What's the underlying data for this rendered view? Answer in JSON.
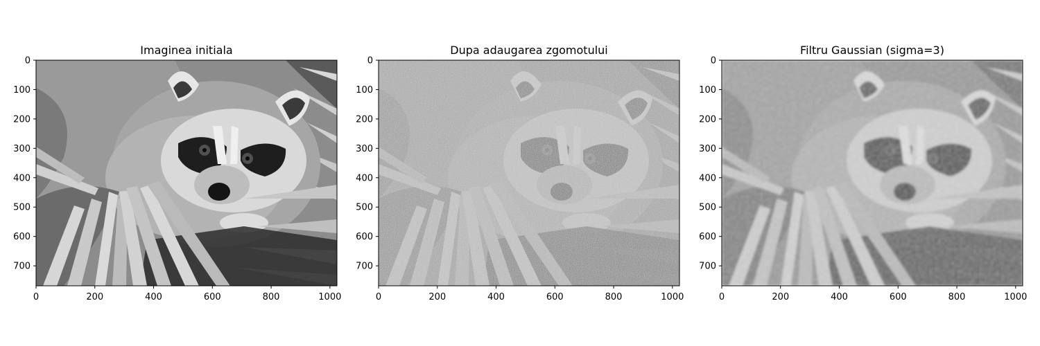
{
  "figure": {
    "description_hidden": "",
    "panels": [
      {
        "id": "original",
        "title": "Imaginea initiala",
        "xticks": [
          "0",
          "200",
          "400",
          "600",
          "800",
          "1000"
        ],
        "yticks": [
          "0",
          "100",
          "200",
          "300",
          "400",
          "500",
          "600",
          "700"
        ],
        "xlim": [
          0,
          1024
        ],
        "ylim": [
          768,
          0
        ],
        "image_style": "sharp-grayscale"
      },
      {
        "id": "noisy",
        "title": "Dupa adaugarea zgomotului",
        "xticks": [
          "0",
          "200",
          "400",
          "600",
          "800",
          "1000"
        ],
        "yticks": [
          "0",
          "100",
          "200",
          "300",
          "400",
          "500",
          "600",
          "700"
        ],
        "xlim": [
          0,
          1024
        ],
        "ylim": [
          768,
          0
        ],
        "image_style": "noisy-grayscale"
      },
      {
        "id": "gaussian",
        "title": "Filtru Gaussian (sigma=3)",
        "xticks": [
          "0",
          "200",
          "400",
          "600",
          "800",
          "1000"
        ],
        "yticks": [
          "0",
          "100",
          "200",
          "300",
          "400",
          "500",
          "600",
          "700"
        ],
        "xlim": [
          0,
          1024
        ],
        "ylim": [
          768,
          0
        ],
        "image_style": "blurred-grayscale"
      }
    ]
  }
}
